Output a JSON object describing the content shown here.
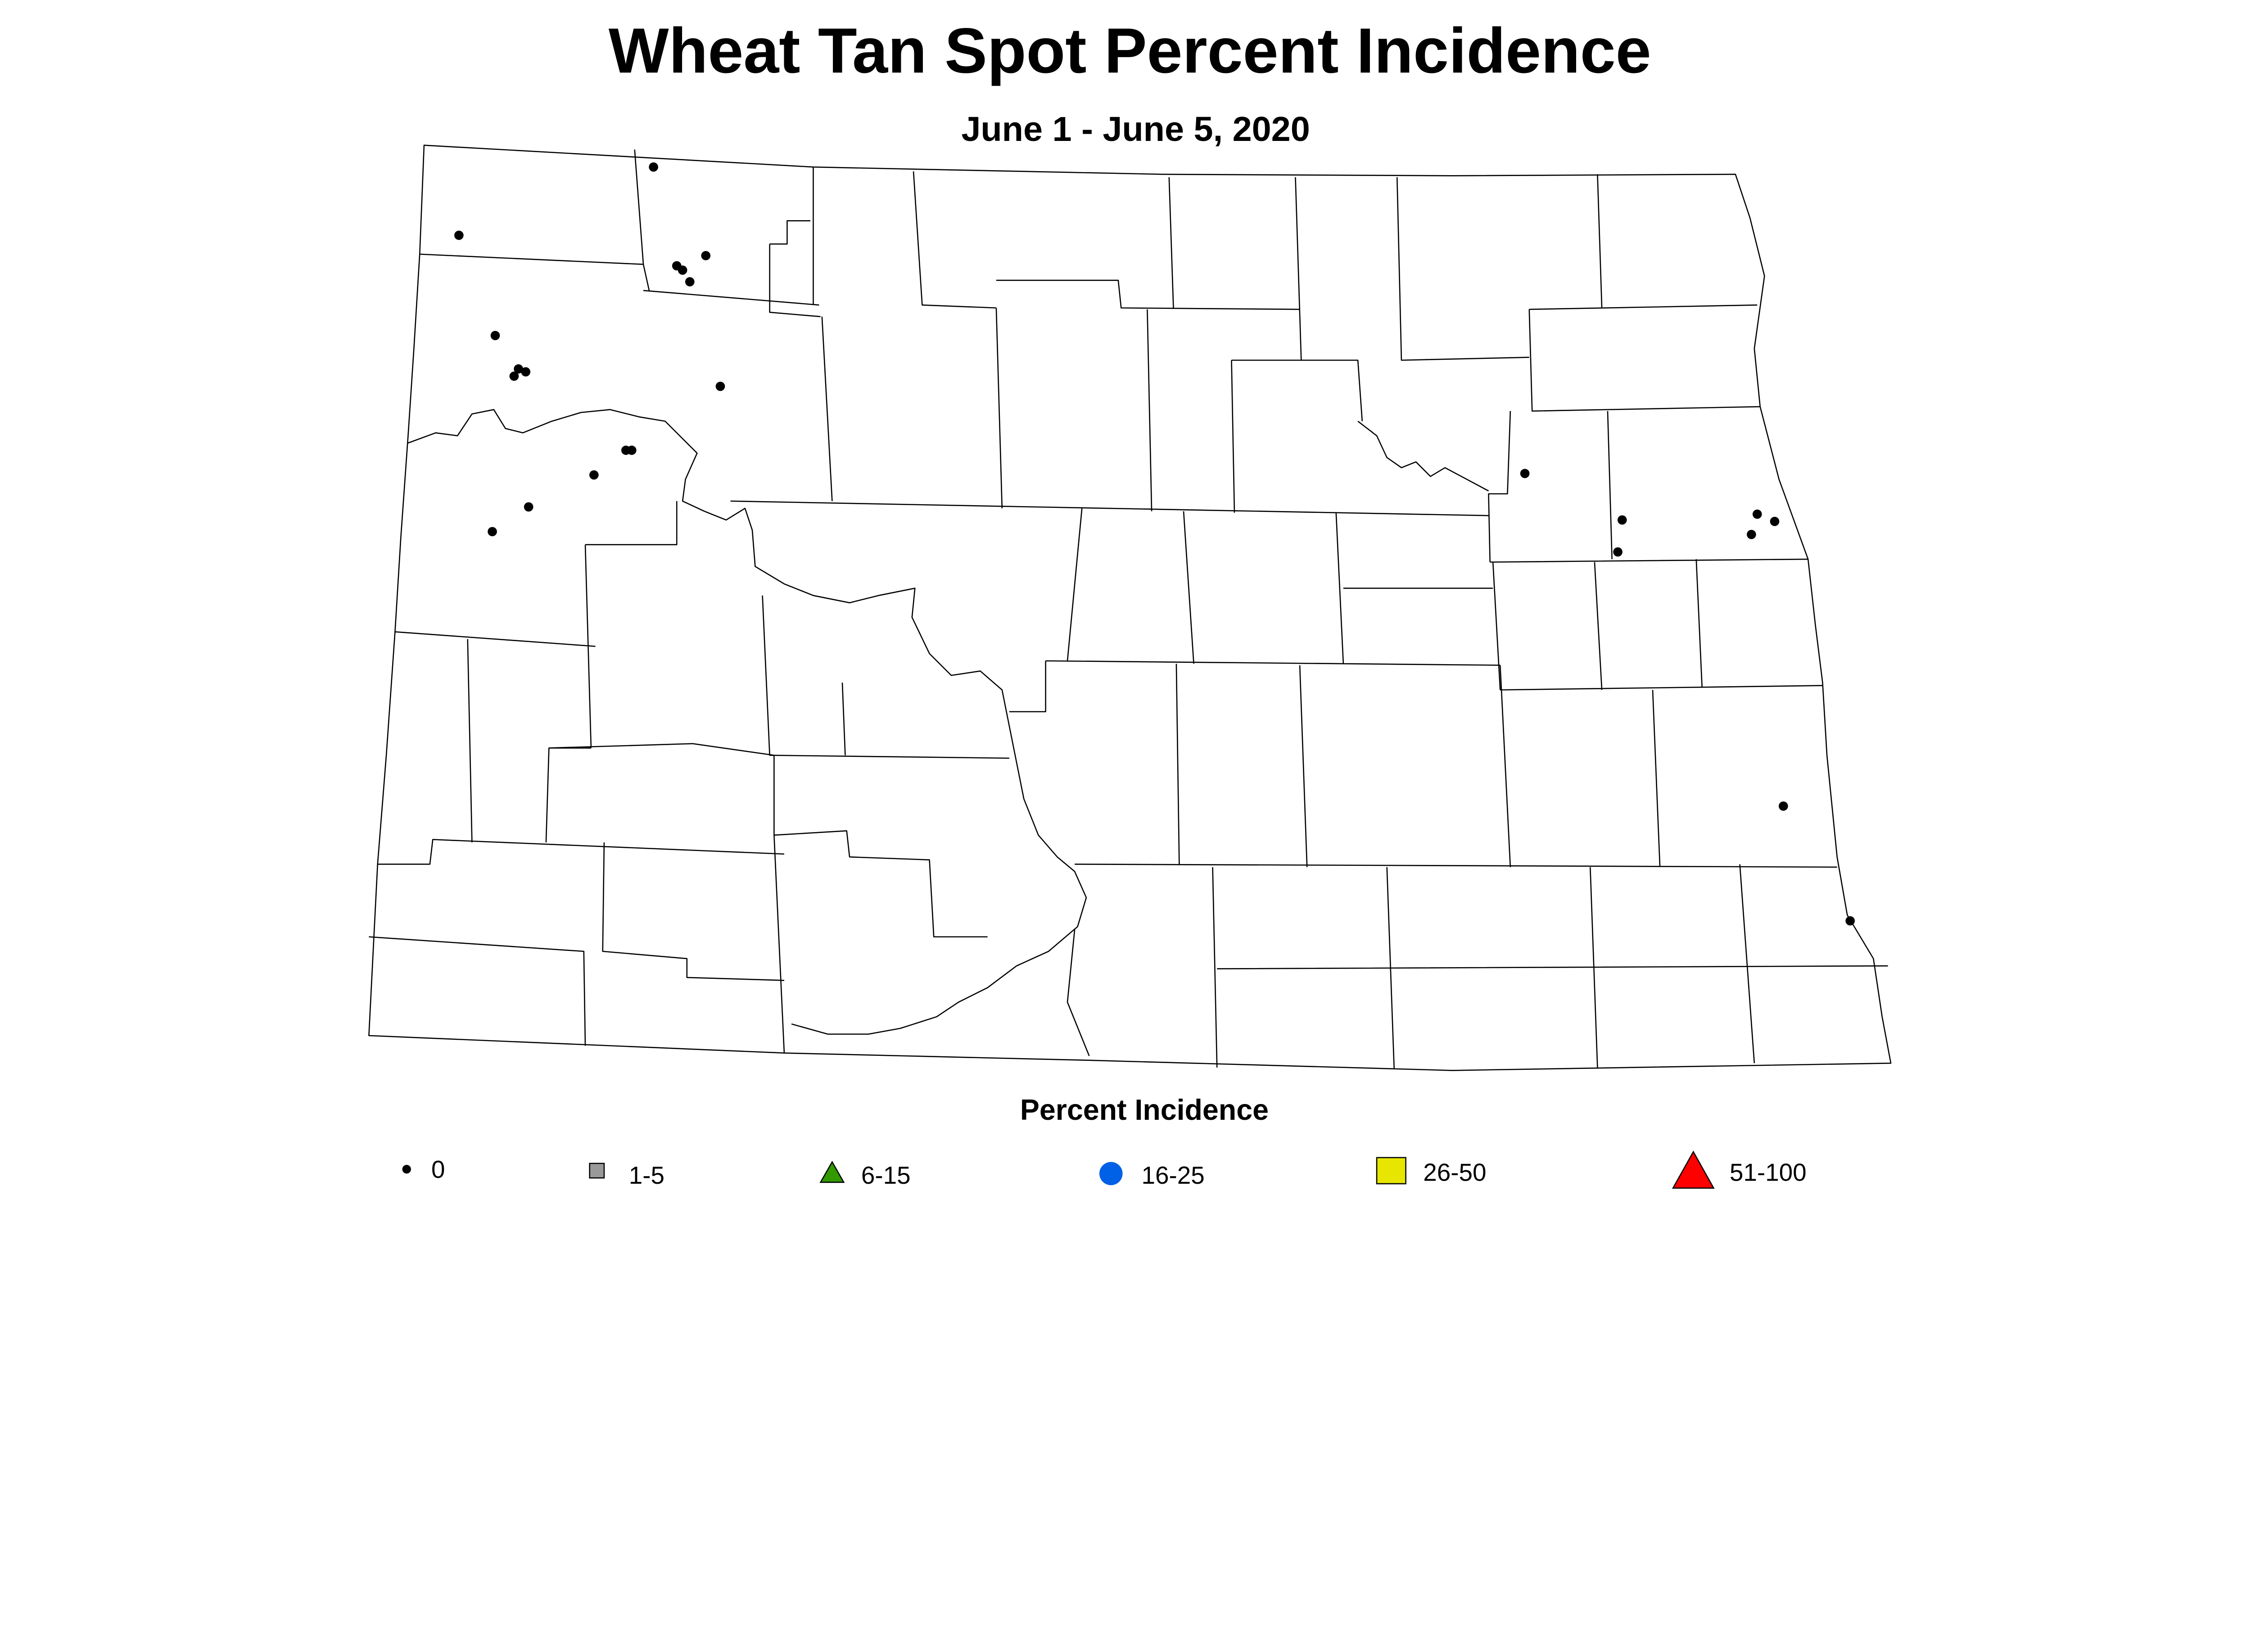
{
  "title": "Wheat Tan Spot Percent Incidence",
  "subtitle": "June 1 - June 5, 2020",
  "map": {
    "region": "North Dakota counties",
    "observations": {
      "category": "0",
      "marker_color": "#000000",
      "count": 24
    }
  },
  "legend": {
    "title": "Percent Incidence",
    "items": [
      {
        "label": "0",
        "shape": "dot",
        "color": "#000000",
        "min": 0,
        "max": 0
      },
      {
        "label": "1-5",
        "shape": "square",
        "color": "#999999",
        "min": 1,
        "max": 5
      },
      {
        "label": "6-15",
        "shape": "triangle",
        "color": "#339900",
        "min": 6,
        "max": 15
      },
      {
        "label": "16-25",
        "shape": "circle",
        "color": "#0060E6",
        "min": 16,
        "max": 25
      },
      {
        "label": "26-50",
        "shape": "square",
        "color": "#E6E600",
        "min": 26,
        "max": 50
      },
      {
        "label": "51-100",
        "shape": "triangle",
        "color": "#FF0000",
        "min": 51,
        "max": 100
      }
    ]
  }
}
